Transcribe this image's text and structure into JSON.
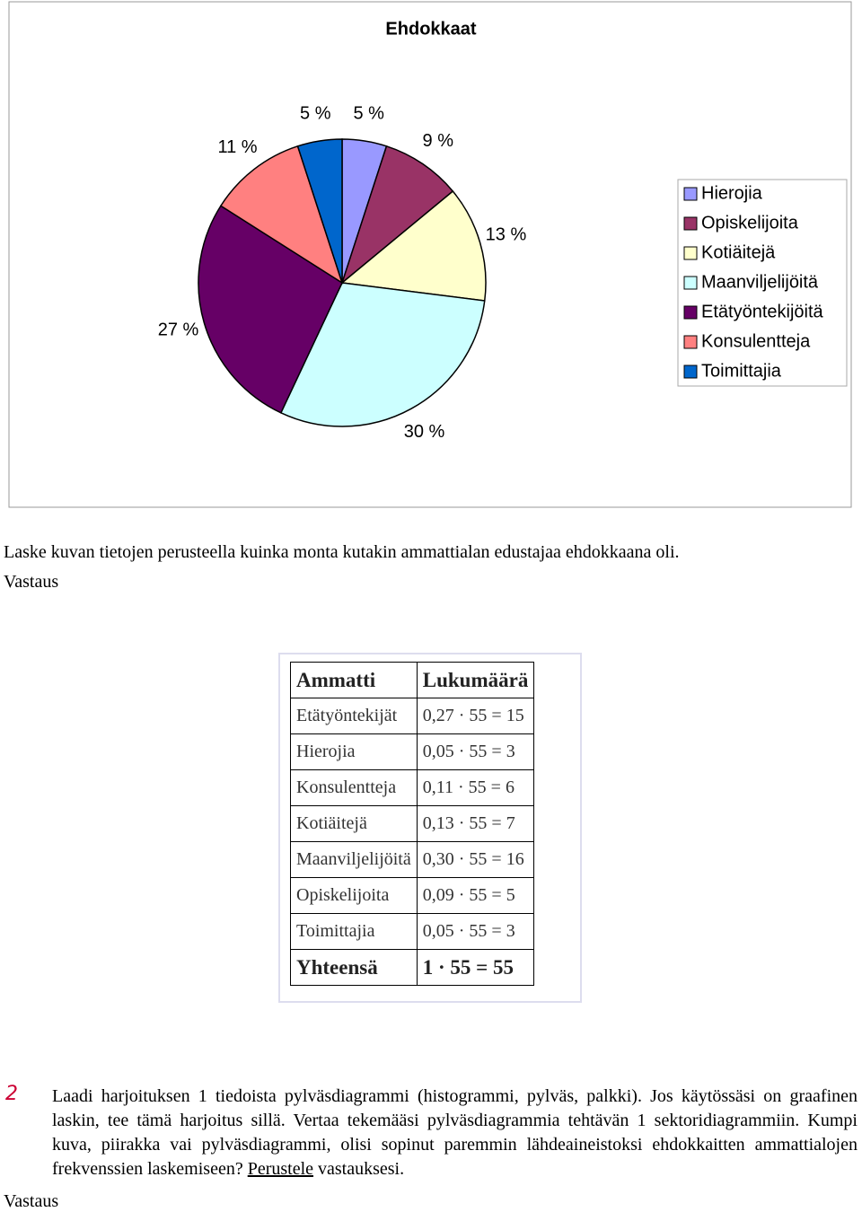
{
  "chart_data": {
    "type": "pie",
    "title": "Ehdokkaat",
    "categories": [
      "Hierojia",
      "Opiskelijoita",
      "Kotiäitejä",
      "Maanviljelijöitä",
      "Etätyöntekijöitä",
      "Konsulentteja",
      "Toimittajia"
    ],
    "values": [
      5,
      9,
      13,
      30,
      27,
      11,
      5
    ],
    "value_labels": [
      "5 %",
      "9 %",
      "13 %",
      "30 %",
      "27 %",
      "11 %",
      "5 %"
    ],
    "colors": [
      "#9999ff",
      "#993366",
      "#ffffcc",
      "#ccffff",
      "#660066",
      "#ff8080",
      "#0066cc"
    ],
    "legend": "right"
  },
  "question": "Laske kuvan tietojen perusteella kuinka monta kutakin ammattialan edustajaa ehdokkaana oli.",
  "answer_label_1": "Vastaus",
  "table": {
    "header": [
      "Ammatti",
      "Lukumäärä"
    ],
    "rows": [
      [
        "Etätyöntekijät",
        "0,27 · 55 = 15"
      ],
      [
        "Hierojia",
        "0,05 · 55 = 3"
      ],
      [
        "Konsulentteja",
        "0,11 · 55 = 6"
      ],
      [
        "Kotiäitejä",
        "0,13 · 55 = 7"
      ],
      [
        "Maanviljelijöitä",
        "0,30 · 55 = 16"
      ],
      [
        "Opiskelijoita",
        "0,09 · 55 = 5"
      ],
      [
        "Toimittajia",
        "0,05 · 55 = 3"
      ]
    ],
    "total": [
      "Yhteensä",
      "1 · 55 = 55"
    ]
  },
  "exercise": {
    "number": "2",
    "text": "Laadi harjoituksen 1 tiedoista pylväsdiagrammi (histogrammi, pylväs, palkki). Jos käytössäsi on graafinen laskin, tee tämä harjoitus sillä. Vertaa tekemääsi pylväsdiagrammia tehtävän 1 sektoridiagrammiin. Kumpi kuva, piirakka vai pylväsdiagrammi, olisi sopinut paremmin lähdeaineistoksi ehdokkaitten ammattialojen frekvenssien laskemiseen? ",
    "underlined": "Perustele",
    "text_end": " vastauksesi."
  },
  "answer_label_2": "Vastaus"
}
